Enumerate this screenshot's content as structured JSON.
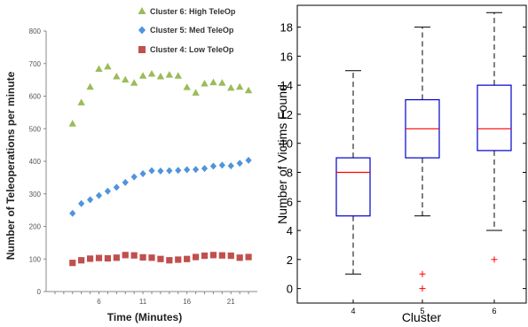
{
  "chart_data": [
    {
      "type": "scatter",
      "xlabel": "Time (Minutes)",
      "ylabel": "Number of Teleoperations per minute",
      "xlim": [
        0,
        24
      ],
      "ylim": [
        0,
        800
      ],
      "x_ticks": [
        6,
        11,
        16,
        21
      ],
      "y_ticks": [
        0,
        100,
        200,
        300,
        400,
        500,
        600,
        700,
        800
      ],
      "legend_position": "top-right",
      "series": [
        {
          "name": "Cluster 6: High TeleOp",
          "color": "#9bbb59",
          "marker": "triangle",
          "x": [
            3,
            4,
            5,
            6,
            7,
            8,
            9,
            10,
            11,
            12,
            13,
            14,
            15,
            16,
            17,
            18,
            19,
            20,
            21,
            22,
            23
          ],
          "y": [
            515,
            580,
            628,
            683,
            690,
            660,
            650,
            640,
            662,
            668,
            660,
            665,
            662,
            627,
            610,
            638,
            642,
            640,
            625,
            628,
            617
          ]
        },
        {
          "name": "Cluster 5: Med TeleOp",
          "color": "#4f94dc",
          "marker": "diamond",
          "x": [
            3,
            4,
            5,
            6,
            7,
            8,
            9,
            10,
            11,
            12,
            13,
            14,
            15,
            16,
            17,
            18,
            19,
            20,
            21,
            22,
            23
          ],
          "y": [
            240,
            270,
            282,
            295,
            308,
            320,
            335,
            352,
            362,
            371,
            370,
            371,
            372,
            374,
            375,
            378,
            385,
            388,
            386,
            394,
            403
          ]
        },
        {
          "name": "Cluster 4: Low TeleOp",
          "color": "#c0504d",
          "marker": "square",
          "x": [
            3,
            4,
            5,
            6,
            7,
            8,
            9,
            10,
            11,
            12,
            13,
            14,
            15,
            16,
            17,
            18,
            19,
            20,
            21,
            22,
            23
          ],
          "y": [
            88,
            96,
            101,
            103,
            102,
            104,
            112,
            111,
            105,
            104,
            100,
            96,
            98,
            100,
            106,
            110,
            112,
            111,
            110,
            104,
            106
          ]
        }
      ]
    },
    {
      "type": "box",
      "xlabel": "Cluster",
      "ylabel": "Number of Victims Found",
      "ylim": [
        -1,
        19.5
      ],
      "y_ticks": [
        0,
        2,
        4,
        6,
        8,
        10,
        12,
        14,
        16,
        18
      ],
      "categories": [
        "4",
        "5",
        "6"
      ],
      "boxes": [
        {
          "category": "4",
          "whisker_low": 1,
          "q1": 5,
          "median": 8,
          "q3": 9,
          "whisker_high": 15,
          "outliers": []
        },
        {
          "category": "5",
          "whisker_low": 5,
          "q1": 9,
          "median": 11,
          "q3": 13,
          "whisker_high": 18,
          "outliers": [
            1,
            0
          ]
        },
        {
          "category": "6",
          "whisker_low": 4,
          "q1": 9.5,
          "median": 11,
          "q3": 14,
          "whisker_high": 19,
          "outliers": [
            2
          ]
        }
      ],
      "box_color": "#0000cc",
      "median_color": "#ff0000",
      "outlier_color": "#ff0000"
    }
  ]
}
